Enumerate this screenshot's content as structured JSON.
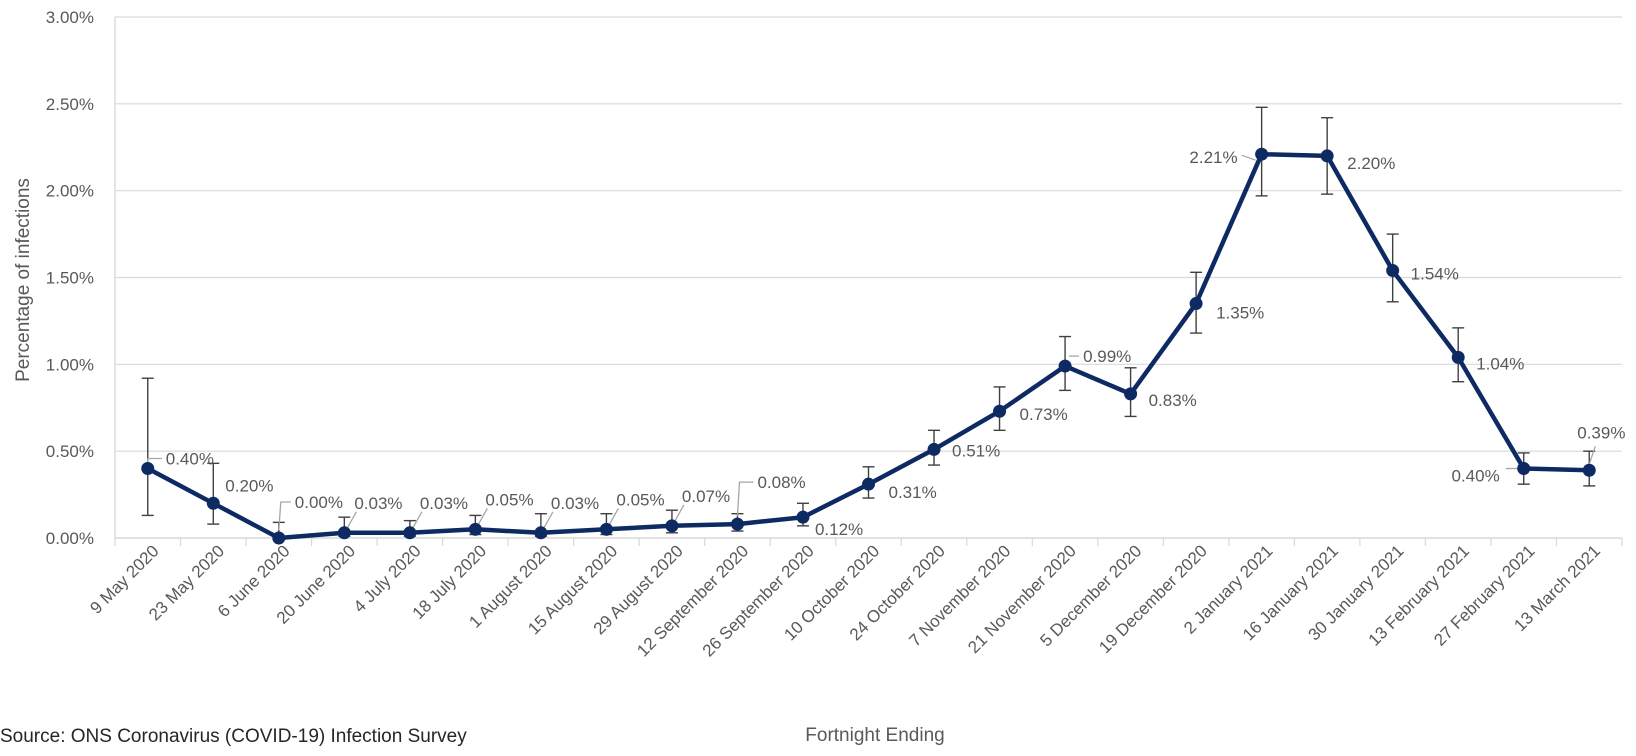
{
  "source_note": "Source: ONS Coronavirus (COVID-19) Infection Survey",
  "colors": {
    "line": "#0d2a63",
    "errorbar": "#404040",
    "grid": "#d9d9d9",
    "axis_text": "#595959",
    "leader": "#a6a6a6"
  },
  "chart_data": {
    "type": "line",
    "title": "",
    "xlabel": "Fortnight Ending",
    "ylabel": "Percentage of infections",
    "ylim": [
      0,
      3.0
    ],
    "grid": true,
    "y_ticks": [
      "0.00%",
      "0.50%",
      "1.00%",
      "1.50%",
      "2.00%",
      "2.50%",
      "3.00%"
    ],
    "y_tick_values": [
      0,
      0.5,
      1.0,
      1.5,
      2.0,
      2.5,
      3.0
    ],
    "categories": [
      "9 May 2020",
      "23 May 2020",
      "6 June 2020",
      "20 June 2020",
      "4 July 2020",
      "18 July 2020",
      "1 August 2020",
      "15 August 2020",
      "29 August 2020",
      "12 September 2020",
      "26 September 2020",
      "10 October 2020",
      "24 October 2020",
      "7 November 2020",
      "21 November 2020",
      "5 December 2020",
      "19 December 2020",
      "2 January 2021",
      "16 January 2021",
      "30 January 2021",
      "13 February 2021",
      "27 February 2021",
      "13 March 2021"
    ],
    "series": [
      {
        "values": [
          0.4,
          0.2,
          0.0,
          0.03,
          0.03,
          0.05,
          0.03,
          0.05,
          0.07,
          0.08,
          0.12,
          0.31,
          0.51,
          0.73,
          0.99,
          0.83,
          1.35,
          2.21,
          2.2,
          1.54,
          1.04,
          0.4,
          0.39
        ],
        "lower": [
          0.13,
          0.08,
          0.0,
          0.01,
          0.01,
          0.02,
          0.01,
          0.02,
          0.03,
          0.04,
          0.07,
          0.23,
          0.42,
          0.62,
          0.85,
          0.7,
          1.18,
          1.97,
          1.98,
          1.36,
          0.9,
          0.31,
          0.3
        ],
        "upper": [
          0.92,
          0.43,
          0.09,
          0.12,
          0.1,
          0.13,
          0.14,
          0.14,
          0.16,
          0.14,
          0.2,
          0.41,
          0.62,
          0.87,
          1.16,
          0.98,
          1.53,
          2.48,
          2.42,
          1.75,
          1.21,
          0.49,
          0.5
        ]
      }
    ],
    "data_labels": [
      "0.40%",
      "0.20%",
      "0.00%",
      "0.03%",
      "0.03%",
      "0.05%",
      "0.03%",
      "0.05%",
      "0.07%",
      "0.08%",
      "0.12%",
      "0.31%",
      "0.51%",
      "0.73%",
      "0.99%",
      "0.83%",
      "1.35%",
      "2.21%",
      "2.20%",
      "1.54%",
      "1.04%",
      "0.40%",
      "0.39%"
    ]
  }
}
